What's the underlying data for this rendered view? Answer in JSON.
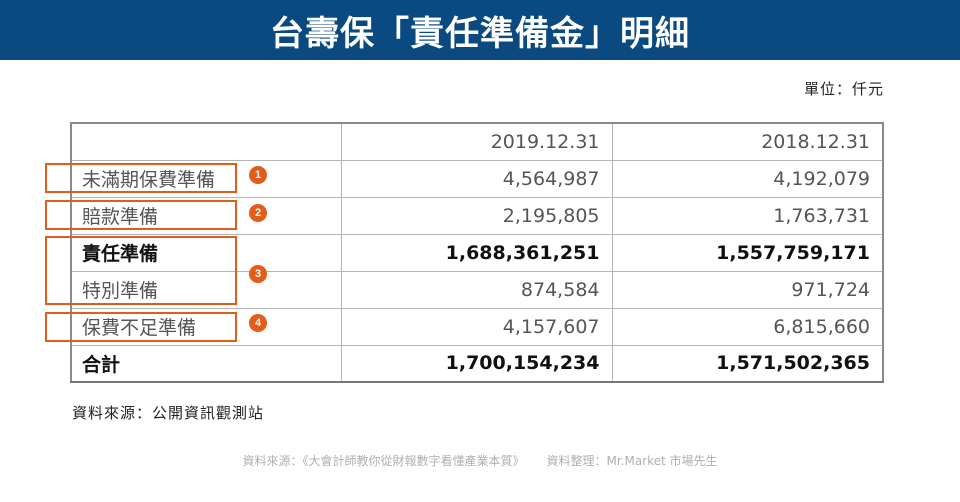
{
  "title": "台壽保「責任準備金」明細",
  "unit": "單位：仟元",
  "table": {
    "headers": [
      "",
      "2019.12.31",
      "2018.12.31"
    ],
    "rows": [
      {
        "label": "未滿期保費準備",
        "v2019": "4,564,987",
        "v2018": "4,192,079"
      },
      {
        "label": "賠款準備",
        "v2019": "2,195,805",
        "v2018": "1,763,731"
      },
      {
        "label": "責任準備",
        "v2019": "1,688,361,251",
        "v2018": "1,557,759,171"
      },
      {
        "label": "特別準備",
        "v2019": "874,584",
        "v2018": "971,724"
      },
      {
        "label": "保費不足準備",
        "v2019": "4,157,607",
        "v2018": "6,815,660"
      },
      {
        "label": "合計",
        "v2019": "1,700,154,234",
        "v2018": "1,571,502,365"
      }
    ]
  },
  "badges": [
    "1",
    "2",
    "3",
    "4"
  ],
  "source": "資料來源：公開資訊觀測站",
  "footer": {
    "source": "資料來源：《大會計師教你從財報數字看懂產業本質》",
    "compiled": "資料整理：Mr.Market 市場先生"
  },
  "colors": {
    "title_bg": "#0b4a80",
    "highlight": "#e35c1a"
  }
}
